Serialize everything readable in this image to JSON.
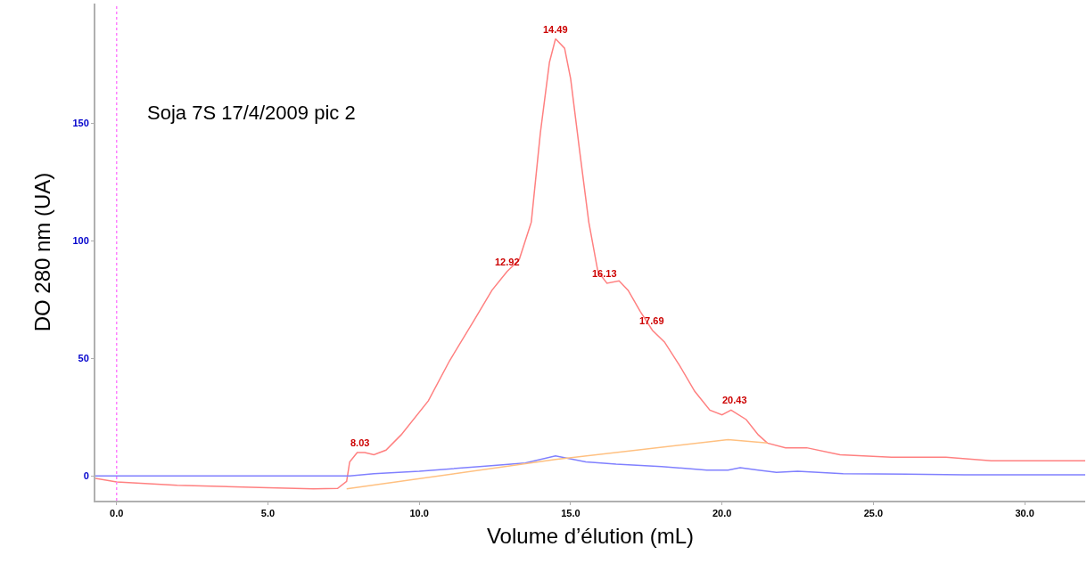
{
  "chart_data": {
    "type": "line",
    "xlabel": "Volume d’élution (mL)",
    "ylabel": "DO 280 nm (UA)",
    "annotations": [
      "Soja 7S 17/4/2009 pic 2",
      {
        "text": "8.03",
        "x": 8.03,
        "y": 10
      },
      {
        "text": "12.92",
        "x": 12.92,
        "y": 87
      },
      {
        "text": "14.49",
        "x": 14.49,
        "y": 186
      },
      {
        "text": "16.13",
        "x": 16.13,
        "y": 82
      },
      {
        "text": "17.69",
        "x": 17.69,
        "y": 62
      },
      {
        "text": "20.43",
        "x": 20.43,
        "y": 28
      }
    ],
    "xlim": [
      -0.7,
      32.0
    ],
    "ylim": [
      -10.5,
      201
    ],
    "xticks": [
      {
        "value": 0,
        "label": "0.0"
      },
      {
        "value": 5,
        "label": "5.0"
      },
      {
        "value": 10,
        "label": "10.0"
      },
      {
        "value": 15,
        "label": "15.0"
      },
      {
        "value": 20,
        "label": "20.0"
      },
      {
        "value": 25,
        "label": "25.0"
      },
      {
        "value": 30,
        "label": "30.0"
      }
    ],
    "yticks": [
      0,
      50,
      100,
      150
    ],
    "grid": false,
    "marker": "none",
    "line_style": "solid",
    "ref_lines": [
      {
        "axis": "x",
        "value": 0,
        "color": "#ff80ff",
        "line_style": "dotted"
      }
    ],
    "series": [
      {
        "color": "#ff8080",
        "x": [
          -0.7,
          0,
          2,
          5,
          6.5,
          7.3,
          7.6,
          7.7,
          7.95,
          8.2,
          8.5,
          8.9,
          9.4,
          10.3,
          11.0,
          11.8,
          12.4,
          12.9,
          13.3,
          13.7,
          14.0,
          14.3,
          14.5,
          14.8,
          15.0,
          15.3,
          15.6,
          15.9,
          16.2,
          16.6,
          16.9,
          17.3,
          17.7,
          18.1,
          18.6,
          19.1,
          19.6,
          20.0,
          20.3,
          20.8,
          21.2,
          21.5,
          22.1,
          22.8,
          23.9,
          25.6,
          27.4,
          28.9,
          30.1,
          32.0
        ],
        "values": [
          -1,
          -2.5,
          -4,
          -5,
          -5.5,
          -5.3,
          -2.3,
          6,
          10,
          10,
          9,
          11,
          17.5,
          32,
          49,
          66,
          79,
          87,
          92,
          108,
          146,
          176,
          186,
          182,
          169,
          138,
          108,
          87,
          82,
          83,
          79,
          70,
          62,
          57,
          47,
          36,
          28,
          26,
          28,
          24,
          17.5,
          14,
          12,
          12,
          9,
          8,
          8,
          6.5,
          6.5,
          6.5
        ]
      },
      {
        "color": "#8080ff",
        "x": [
          -0.7,
          7.7,
          8.5,
          10,
          12,
          13.5,
          14.5,
          15.5,
          16.5,
          18,
          19.5,
          20.2,
          20.6,
          21.2,
          21.8,
          22.5,
          24,
          28,
          32
        ],
        "values": [
          0,
          0,
          1,
          2,
          4,
          5.5,
          8.5,
          6,
          5,
          4,
          2.5,
          2.5,
          3.5,
          2.5,
          1.5,
          2,
          1,
          0.5,
          0.5
        ]
      },
      {
        "color": "#ffc080",
        "x": [
          7.6,
          14.5,
          20.2,
          21.5
        ],
        "values": [
          -5.5,
          7,
          15.5,
          14
        ]
      }
    ]
  }
}
